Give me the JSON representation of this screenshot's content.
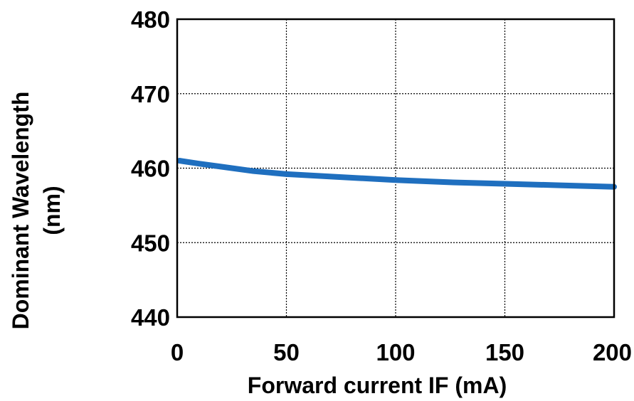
{
  "chart_data": {
    "type": "line",
    "title": "",
    "xlabel": "Forward current IF (mA)",
    "ylabel_lines": [
      "Dominant Wavelength",
      "(nm)"
    ],
    "xlim": [
      0,
      200
    ],
    "ylim": [
      440,
      480
    ],
    "x_ticks": [
      "0",
      "50",
      "100",
      "150",
      "200"
    ],
    "y_ticks": [
      "440",
      "450",
      "460",
      "470",
      "480"
    ],
    "grid": true,
    "series": [
      {
        "color": "#1f6fbf",
        "x": [
          1,
          10,
          20,
          35,
          50,
          75,
          100,
          125,
          150,
          175,
          200
        ],
        "y": [
          461.0,
          460.6,
          460.2,
          459.6,
          459.2,
          458.8,
          458.4,
          458.1,
          457.9,
          457.7,
          457.5
        ]
      }
    ]
  }
}
